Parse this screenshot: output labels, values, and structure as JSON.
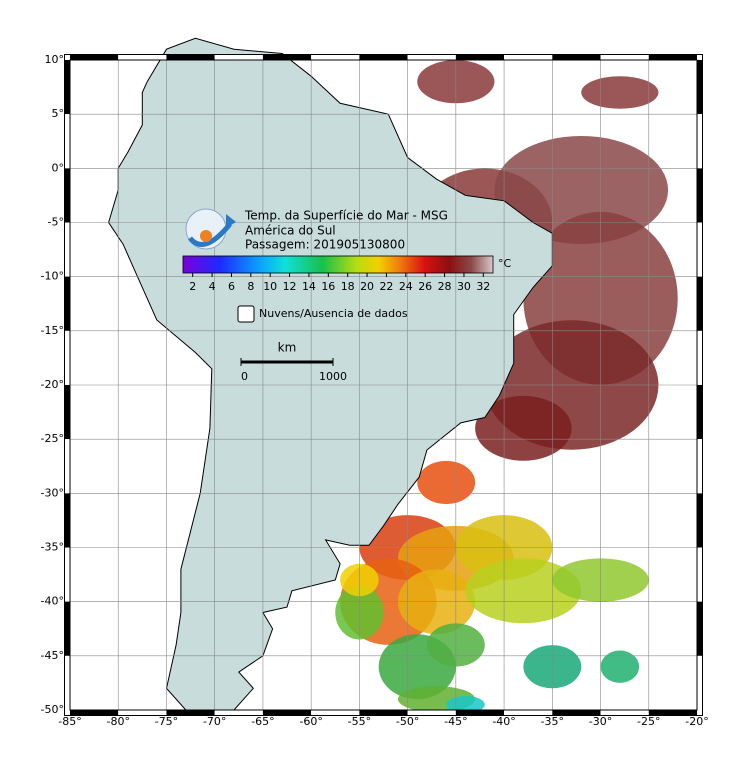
{
  "map": {
    "title_lines": [
      "Temp. da Superfície do Mar - MSG",
      "América do Sul",
      "Passagem: 201905130800"
    ],
    "lonlim": [
      -85,
      -20
    ],
    "latlim": [
      -50,
      10
    ],
    "lonticks": [
      {
        "value": -85,
        "label": "-85°"
      },
      {
        "value": -80,
        "label": "-80°"
      },
      {
        "value": -75,
        "label": "-75°"
      },
      {
        "value": -70,
        "label": "-70°"
      },
      {
        "value": -65,
        "label": "-65°"
      },
      {
        "value": -60,
        "label": "-60°"
      },
      {
        "value": -55,
        "label": "-55°"
      },
      {
        "value": -50,
        "label": "-50°"
      },
      {
        "value": -45,
        "label": "-45°"
      },
      {
        "value": -40,
        "label": "-40°"
      },
      {
        "value": -35,
        "label": "-35°"
      },
      {
        "value": -30,
        "label": "-30°"
      },
      {
        "value": -25,
        "label": "-25°"
      },
      {
        "value": -20,
        "label": "-20°"
      }
    ],
    "latticks": [
      {
        "value": 10,
        "label": "10°"
      },
      {
        "value": 5,
        "label": "5°"
      },
      {
        "value": 0,
        "label": "0°"
      },
      {
        "value": -5,
        "label": "-5°"
      },
      {
        "value": -10,
        "label": "-10°"
      },
      {
        "value": -15,
        "label": "-15°"
      },
      {
        "value": -20,
        "label": "-20°"
      },
      {
        "value": -25,
        "label": "-25°"
      },
      {
        "value": -30,
        "label": "-30°"
      },
      {
        "value": -35,
        "label": "-35°"
      },
      {
        "value": -40,
        "label": "-40°"
      },
      {
        "value": -45,
        "label": "-45°"
      },
      {
        "value": -50,
        "label": "-50°"
      }
    ],
    "colorbar": {
      "range": [
        1,
        33
      ],
      "ticks": [
        2,
        4,
        6,
        8,
        10,
        12,
        14,
        16,
        18,
        20,
        22,
        24,
        26,
        28,
        30,
        32
      ],
      "unit": "°C"
    },
    "no_data_label": "Nuvens/Ausencia de dados",
    "scale_bar": {
      "label": "km",
      "ticks": [
        0,
        1000
      ]
    }
  }
}
